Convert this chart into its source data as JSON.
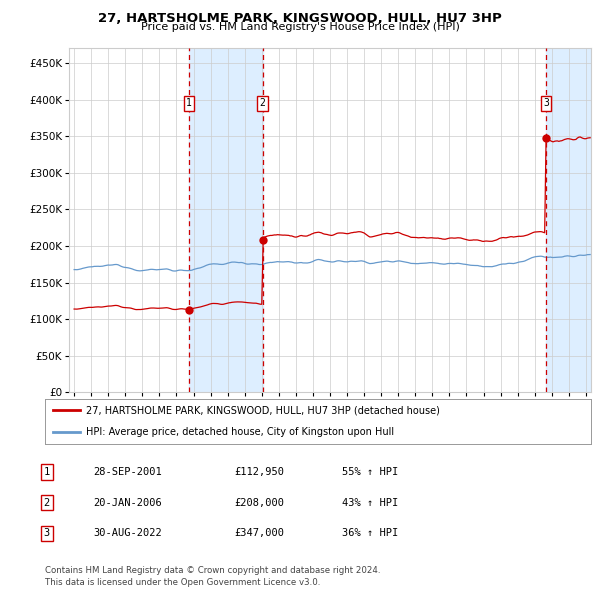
{
  "title": "27, HARTSHOLME PARK, KINGSWOOD, HULL, HU7 3HP",
  "subtitle": "Price paid vs. HM Land Registry's House Price Index (HPI)",
  "xlim": [
    1994.7,
    2025.3
  ],
  "ylim": [
    0,
    470000
  ],
  "yticks": [
    0,
    50000,
    100000,
    150000,
    200000,
    250000,
    300000,
    350000,
    400000,
    450000
  ],
  "sale_dates": [
    2001.74,
    2006.05,
    2022.66
  ],
  "sale_prices": [
    112950,
    208000,
    347000
  ],
  "sale_labels": [
    "1",
    "2",
    "3"
  ],
  "shade_ranges": [
    [
      2001.74,
      2006.05
    ],
    [
      2022.66,
      2025.3
    ]
  ],
  "red_line_color": "#cc0000",
  "blue_line_color": "#6699cc",
  "shade_color": "#ddeeff",
  "dashed_line_color": "#cc0000",
  "legend_entries": [
    "27, HARTSHOLME PARK, KINGSWOOD, HULL, HU7 3HP (detached house)",
    "HPI: Average price, detached house, City of Kingston upon Hull"
  ],
  "table_rows": [
    [
      "1",
      "28-SEP-2001",
      "£112,950",
      "55% ↑ HPI"
    ],
    [
      "2",
      "20-JAN-2006",
      "£208,000",
      "43% ↑ HPI"
    ],
    [
      "3",
      "30-AUG-2022",
      "£347,000",
      "36% ↑ HPI"
    ]
  ],
  "footer": "Contains HM Land Registry data © Crown copyright and database right 2024.\nThis data is licensed under the Open Government Licence v3.0.",
  "background_color": "#ffffff",
  "grid_color": "#cccccc"
}
